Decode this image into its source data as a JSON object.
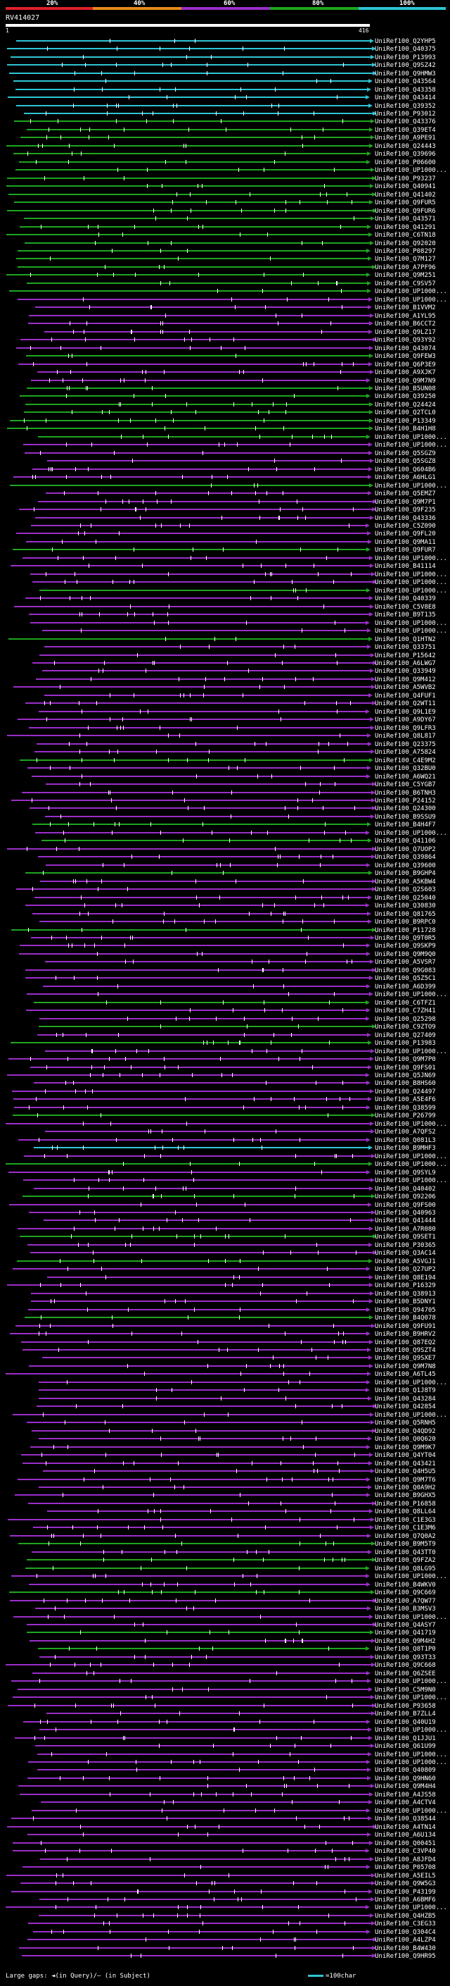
{
  "legend": {
    "labels": [
      "20%",
      "40%",
      "60%",
      "80%",
      "100%"
    ],
    "colors": [
      "#e0202a",
      "#e88a1a",
      "#9a2ec8",
      "#1ea51e",
      "#2ec4d6"
    ]
  },
  "query": {
    "id": "RV414027",
    "start": "1",
    "end": "416"
  },
  "hits": [
    {
      "id": "UniRef100_Q2YHP5",
      "c": 4
    },
    {
      "id": "UniRef100_Q40375",
      "c": 4
    },
    {
      "id": "UniRef100_P13993",
      "c": 4
    },
    {
      "id": "UniRef100_Q9SZ42",
      "c": 4
    },
    {
      "id": "UniRef100_Q9HMW3",
      "c": 4
    },
    {
      "id": "UniRef100_Q43564",
      "c": 4
    },
    {
      "id": "UniRef100_Q43358",
      "c": 4
    },
    {
      "id": "UniRef100_Q43414",
      "c": 4
    },
    {
      "id": "UniRef100_Q39352",
      "c": 4
    },
    {
      "id": "UniRef100_P93012",
      "c": 4
    },
    {
      "id": "UniRef100_Q43376",
      "c": 3
    },
    {
      "id": "UniRef100_Q39ET4",
      "c": 3
    },
    {
      "id": "UniRef100_A9PE91",
      "c": 3
    },
    {
      "id": "UniRef100_Q24443",
      "c": 3
    },
    {
      "id": "UniRef100_Q39696",
      "c": 3
    },
    {
      "id": "UniRef100_P06600",
      "c": 3
    },
    {
      "id": "UniRef100_UP1000...",
      "c": 3
    },
    {
      "id": "UniRef100_P93237",
      "c": 3
    },
    {
      "id": "UniRef100_Q40941",
      "c": 3
    },
    {
      "id": "UniRef100_Q41402",
      "c": 3
    },
    {
      "id": "UniRef100_Q9FUR5",
      "c": 3
    },
    {
      "id": "UniRef100_Q9FUR6",
      "c": 3
    },
    {
      "id": "UniRef100_Q43571",
      "c": 3
    },
    {
      "id": "UniRef100_Q41291",
      "c": 3
    },
    {
      "id": "UniRef100_C6TN18",
      "c": 3
    },
    {
      "id": "UniRef100_Q92020",
      "c": 3
    },
    {
      "id": "UniRef100_P08297",
      "c": 3
    },
    {
      "id": "UniRef100_Q7M127",
      "c": 3
    },
    {
      "id": "UniRef100_A7PF96",
      "c": 3
    },
    {
      "id": "UniRef100_Q9M251",
      "c": 3
    },
    {
      "id": "UniRef100_C9SV57",
      "c": 3
    },
    {
      "id": "UniRef100_UP1000...",
      "c": 3
    },
    {
      "id": "UniRef100_UP1000...",
      "c": 2
    },
    {
      "id": "UniRef100_B1VVM2",
      "c": 2
    },
    {
      "id": "UniRef100_A1YL95",
      "c": 2
    },
    {
      "id": "UniRef100_B6CCT2",
      "c": 2
    },
    {
      "id": "UniRef100_Q9LZ17",
      "c": 2
    },
    {
      "id": "UniRef100_Q93Y92",
      "c": 2
    },
    {
      "id": "UniRef100_Q43074",
      "c": 2
    },
    {
      "id": "UniRef100_Q9FEW3",
      "c": 3
    },
    {
      "id": "UniRef100_Q6P3E9",
      "c": 2
    },
    {
      "id": "UniRef100_A9XJK7",
      "c": 2
    },
    {
      "id": "UniRef100_Q9M7N9",
      "c": 2
    },
    {
      "id": "UniRef100_B5UN08",
      "c": 3
    },
    {
      "id": "UniRef100_Q39250",
      "c": 3
    },
    {
      "id": "UniRef100_Q24424",
      "c": 3
    },
    {
      "id": "UniRef100_Q2TCL0",
      "c": 3
    },
    {
      "id": "UniRef100_P13349",
      "c": 3
    },
    {
      "id": "UniRef100_B4H1H8",
      "c": 3
    },
    {
      "id": "UniRef100_UP1000...",
      "c": 3
    },
    {
      "id": "UniRef100_UP1000...",
      "c": 2
    },
    {
      "id": "UniRef100_Q5SGZ9",
      "c": 2
    },
    {
      "id": "UniRef100_Q5SGZ8",
      "c": 2
    },
    {
      "id": "UniRef100_Q604B6",
      "c": 2
    },
    {
      "id": "UniRef100_A6HLG1",
      "c": 2
    },
    {
      "id": "UniRef100_UP1000...",
      "c": 3
    },
    {
      "id": "UniRef100_Q5EMZ7",
      "c": 2
    },
    {
      "id": "UniRef100_Q9M7P1",
      "c": 2
    },
    {
      "id": "UniRef100_Q9F235",
      "c": 2
    },
    {
      "id": "UniRef100_Q43336",
      "c": 2
    },
    {
      "id": "UniRef100_C5Z090",
      "c": 2
    },
    {
      "id": "UniRef100_Q9FL20",
      "c": 2
    },
    {
      "id": "UniRef100_Q9MA11",
      "c": 2
    },
    {
      "id": "UniRef100_Q9FUR7",
      "c": 3
    },
    {
      "id": "UniRef100_UP1000...",
      "c": 2
    },
    {
      "id": "UniRef100_B41114",
      "c": 2
    },
    {
      "id": "UniRef100_UP1000...",
      "c": 2
    },
    {
      "id": "UniRef100_UP1000...",
      "c": 2
    },
    {
      "id": "UniRef100_UP1000...",
      "c": 3
    },
    {
      "id": "UniRef100_Q40339",
      "c": 2
    },
    {
      "id": "UniRef100_C5V8E8",
      "c": 2
    },
    {
      "id": "UniRef100_B9T135",
      "c": 2
    },
    {
      "id": "UniRef100_UP1000...",
      "c": 2
    },
    {
      "id": "UniRef100_UP1000...",
      "c": 2
    },
    {
      "id": "UniRef100_Q1HTN2",
      "c": 3
    },
    {
      "id": "UniRef100_Q33751",
      "c": 2
    },
    {
      "id": "UniRef100_P15642",
      "c": 2
    },
    {
      "id": "UniRef100_A6LWG7",
      "c": 2
    },
    {
      "id": "UniRef100_Q33949",
      "c": 2
    },
    {
      "id": "UniRef100_Q9M412",
      "c": 2
    },
    {
      "id": "UniRef100_A5WVB2",
      "c": 2
    },
    {
      "id": "UniRef100_Q4FUF1",
      "c": 2
    },
    {
      "id": "UniRef100_Q2WT11",
      "c": 2
    },
    {
      "id": "UniRef100_Q9L1E9",
      "c": 2
    },
    {
      "id": "UniRef100_A9DY67",
      "c": 2
    },
    {
      "id": "UniRef100_Q9LFR3",
      "c": 2
    },
    {
      "id": "UniRef100_Q8L817",
      "c": 2
    },
    {
      "id": "UniRef100_Q23375",
      "c": 2
    },
    {
      "id": "UniRef100_A75824",
      "c": 2
    },
    {
      "id": "UniRef100_C4E9M2",
      "c": 3
    },
    {
      "id": "UniRef100_Q32BU0",
      "c": 2
    },
    {
      "id": "UniRef100_A6WQ21",
      "c": 2
    },
    {
      "id": "UniRef100_C5YGB7",
      "c": 2
    },
    {
      "id": "UniRef100_B6TNH3",
      "c": 2
    },
    {
      "id": "UniRef100_P24152",
      "c": 2
    },
    {
      "id": "UniRef100_Q24300",
      "c": 2
    },
    {
      "id": "UniRef100_B9SSU9",
      "c": 2
    },
    {
      "id": "UniRef100_B4H4F7",
      "c": 3
    },
    {
      "id": "UniRef100_UP1000...",
      "c": 2
    },
    {
      "id": "UniRef100_Q41106",
      "c": 3
    },
    {
      "id": "UniRef100_Q7UOP2",
      "c": 2
    },
    {
      "id": "UniRef100_Q39864",
      "c": 2
    },
    {
      "id": "UniRef100_Q39600",
      "c": 2
    },
    {
      "id": "UniRef100_B9GHP4",
      "c": 3
    },
    {
      "id": "UniRef100_A5KBW4",
      "c": 2
    },
    {
      "id": "UniRef100_Q2S603",
      "c": 2
    },
    {
      "id": "UniRef100_Q25040",
      "c": 2
    },
    {
      "id": "UniRef100_Q30830",
      "c": 2
    },
    {
      "id": "UniRef100_Q81765",
      "c": 2
    },
    {
      "id": "UniRef100_B9RPC0",
      "c": 2
    },
    {
      "id": "UniRef100_P11728",
      "c": 3
    },
    {
      "id": "UniRef100_Q9T0R5",
      "c": 2
    },
    {
      "id": "UniRef100_Q9SKP9",
      "c": 2
    },
    {
      "id": "UniRef100_Q9M9Q0",
      "c": 2
    },
    {
      "id": "UniRef100_A5VSR7",
      "c": 2
    },
    {
      "id": "UniRef100_Q9G083",
      "c": 2
    },
    {
      "id": "UniRef100_Q5Z5C1",
      "c": 2
    },
    {
      "id": "UniRef100_A6D399",
      "c": 2
    },
    {
      "id": "UniRef100_UP1000...",
      "c": 2
    },
    {
      "id": "UniRef100_C6TFZ1",
      "c": 3
    },
    {
      "id": "UniRef100_C7ZH41",
      "c": 2
    },
    {
      "id": "UniRef100_Q25298",
      "c": 2
    },
    {
      "id": "UniRef100_C9ZTO9",
      "c": 3
    },
    {
      "id": "UniRef100_Q27409",
      "c": 2
    },
    {
      "id": "UniRef100_P13983",
      "c": 3
    },
    {
      "id": "UniRef100_UP1000...",
      "c": 2
    },
    {
      "id": "UniRef100_Q9M7P0",
      "c": 2
    },
    {
      "id": "UniRef100_Q9FS01",
      "c": 2
    },
    {
      "id": "UniRef100_Q5JN69",
      "c": 2
    },
    {
      "id": "UniRef100_B8HS60",
      "c": 2
    },
    {
      "id": "UniRef100_Q24497",
      "c": 2
    },
    {
      "id": "UniRef100_A5E4F6",
      "c": 2
    },
    {
      "id": "UniRef100_Q38599",
      "c": 2
    },
    {
      "id": "UniRef100_P26799",
      "c": 3
    },
    {
      "id": "UniRef100_UP1000...",
      "c": 2
    },
    {
      "id": "UniRef100_A7QFS2",
      "c": 2
    },
    {
      "id": "UniRef100_Q081L3",
      "c": 2
    },
    {
      "id": "UniRef100_B9MHF3",
      "c": 4
    },
    {
      "id": "UniRef100_UP1000...",
      "c": 2
    },
    {
      "id": "UniRef100_UP1000...",
      "c": 3
    },
    {
      "id": "UniRef100_Q9SYL9",
      "c": 2
    },
    {
      "id": "UniRef100_UP1000...",
      "c": 2
    },
    {
      "id": "UniRef100_Q40402",
      "c": 2
    },
    {
      "id": "UniRef100_Q92206",
      "c": 3
    },
    {
      "id": "UniRef100_Q9FS00",
      "c": 2
    },
    {
      "id": "UniRef100_Q40963",
      "c": 2
    },
    {
      "id": "UniRef100_Q41444",
      "c": 2
    },
    {
      "id": "UniRef100_A7R080",
      "c": 2
    },
    {
      "id": "UniRef100_Q9SET1",
      "c": 3
    },
    {
      "id": "UniRef100_P30365",
      "c": 2
    },
    {
      "id": "UniRef100_Q3AC14",
      "c": 2
    },
    {
      "id": "UniRef100_A5VGJ1",
      "c": 3
    },
    {
      "id": "UniRef100_Q27UP2",
      "c": 2
    },
    {
      "id": "UniRef100_Q8E194",
      "c": 2
    },
    {
      "id": "UniRef100_P16329",
      "c": 2
    },
    {
      "id": "UniRef100_Q38913",
      "c": 2
    },
    {
      "id": "UniRef100_B5DNY1",
      "c": 2
    },
    {
      "id": "UniRef100_Q94705",
      "c": 2
    },
    {
      "id": "UniRef100_B4Q078",
      "c": 3
    },
    {
      "id": "UniRef100_Q9FU91",
      "c": 2
    },
    {
      "id": "UniRef100_B9HRV2",
      "c": 2
    },
    {
      "id": "UniRef100_Q87EQ2",
      "c": 2
    },
    {
      "id": "UniRef100_Q9SZT4",
      "c": 2
    },
    {
      "id": "UniRef100_Q9SXE7",
      "c": 2
    },
    {
      "id": "UniRef100_Q9M7N8",
      "c": 2
    },
    {
      "id": "UniRef100_A6TL45",
      "c": 2
    },
    {
      "id": "UniRef100_UP1000...",
      "c": 2
    },
    {
      "id": "UniRef100_Q1J8T9",
      "c": 2
    },
    {
      "id": "UniRef100_Q43284",
      "c": 2
    },
    {
      "id": "UniRef100_Q42854",
      "c": 2
    },
    {
      "id": "UniRef100_UP1000...",
      "c": 2
    },
    {
      "id": "UniRef100_Q5RNH5",
      "c": 2
    },
    {
      "id": "UniRef100_Q4QD92",
      "c": 2
    },
    {
      "id": "UniRef100_Q0Q620",
      "c": 2
    },
    {
      "id": "UniRef100_Q9M9K7",
      "c": 2
    },
    {
      "id": "UniRef100_Q4YT04",
      "c": 2
    },
    {
      "id": "UniRef100_Q43421",
      "c": 2
    },
    {
      "id": "UniRef100_Q4H5U5",
      "c": 2
    },
    {
      "id": "UniRef100_Q9M7T6",
      "c": 2
    },
    {
      "id": "UniRef100_Q0A9H2",
      "c": 2
    },
    {
      "id": "UniRef100_B9GHX5",
      "c": 2
    },
    {
      "id": "UniRef100_P16858",
      "c": 2
    },
    {
      "id": "UniRef100_Q8LL64",
      "c": 2
    },
    {
      "id": "UniRef100_C1E3G3",
      "c": 2
    },
    {
      "id": "UniRef100_C1E3M6",
      "c": 2
    },
    {
      "id": "UniRef100_Q7Q0A2",
      "c": 2
    },
    {
      "id": "UniRef100_B9M5T9",
      "c": 3
    },
    {
      "id": "UniRef100_Q43TT0",
      "c": 2
    },
    {
      "id": "UniRef100_Q9FZA2",
      "c": 3
    },
    {
      "id": "UniRef100_Q8LG95",
      "c": 3
    },
    {
      "id": "UniRef100_UP1000...",
      "c": 2
    },
    {
      "id": "UniRef100_B4WKV0",
      "c": 2
    },
    {
      "id": "UniRef100_Q9C669",
      "c": 3
    },
    {
      "id": "UniRef100_A7QW77",
      "c": 2
    },
    {
      "id": "UniRef100_B3MSV3",
      "c": 2
    },
    {
      "id": "UniRef100_UP1000...",
      "c": 2
    },
    {
      "id": "UniRef100_Q4ASY7",
      "c": 2
    },
    {
      "id": "UniRef100_Q41719",
      "c": 3
    },
    {
      "id": "UniRef100_Q9M4H2",
      "c": 2
    },
    {
      "id": "UniRef100_Q8T1P0",
      "c": 3
    },
    {
      "id": "UniRef100_Q93T33",
      "c": 2
    },
    {
      "id": "UniRef100_Q9C668",
      "c": 2
    },
    {
      "id": "UniRef100_Q6ZSEE",
      "c": 2
    },
    {
      "id": "UniRef100_UP1000...",
      "c": 2
    },
    {
      "id": "UniRef100_C5M9N0",
      "c": 2
    },
    {
      "id": "UniRef100_UP1000...",
      "c": 2
    },
    {
      "id": "UniRef100_P93658",
      "c": 2
    },
    {
      "id": "UniRef100_B7ZLL4",
      "c": 2
    },
    {
      "id": "UniRef100_Q40U19",
      "c": 2
    },
    {
      "id": "UniRef100_UP1000...",
      "c": 2
    },
    {
      "id": "UniRef100_Q1JJU1",
      "c": 2
    },
    {
      "id": "UniRef100_Q61U99",
      "c": 2
    },
    {
      "id": "UniRef100_UP1000...",
      "c": 2
    },
    {
      "id": "UniRef100_UP1000...",
      "c": 2
    },
    {
      "id": "UniRef100_Q40809",
      "c": 2
    },
    {
      "id": "UniRef100_Q9HN60",
      "c": 2
    },
    {
      "id": "UniRef100_Q9M4H4",
      "c": 2
    },
    {
      "id": "UniRef100_A4JS58",
      "c": 2
    },
    {
      "id": "UniRef100_A4CTV4",
      "c": 2
    },
    {
      "id": "UniRef100_UP1000...",
      "c": 2
    },
    {
      "id": "UniRef100_Q38544",
      "c": 2
    },
    {
      "id": "UniRef100_A4TN14",
      "c": 2
    },
    {
      "id": "UniRef100_A6U134",
      "c": 2
    },
    {
      "id": "UniRef100_Q00451",
      "c": 2
    },
    {
      "id": "UniRef100_C3VP40",
      "c": 2
    },
    {
      "id": "UniRef100_A8JFD4",
      "c": 2
    },
    {
      "id": "UniRef100_P05708",
      "c": 2
    },
    {
      "id": "UniRef100_A5EIL5",
      "c": 2
    },
    {
      "id": "UniRef100_Q9W5G3",
      "c": 2
    },
    {
      "id": "UniRef100_P43199",
      "c": 2
    },
    {
      "id": "UniRef100_A6BMF6",
      "c": 2
    },
    {
      "id": "UniRef100_UP1000...",
      "c": 2
    },
    {
      "id": "UniRef100_Q4HZB5",
      "c": 2
    },
    {
      "id": "UniRef100_C3EG33",
      "c": 2
    },
    {
      "id": "UniRef100_Q304C4",
      "c": 2
    },
    {
      "id": "UniRef100_A4LZP4",
      "c": 2
    },
    {
      "id": "UniRef100_B4W430",
      "c": 2
    },
    {
      "id": "UniRef100_Q9HR95",
      "c": 2
    }
  ],
  "footer": {
    "large_gaps": "Large gaps: ◄(in Query)/– (in Subject)",
    "scale": "=100char"
  }
}
